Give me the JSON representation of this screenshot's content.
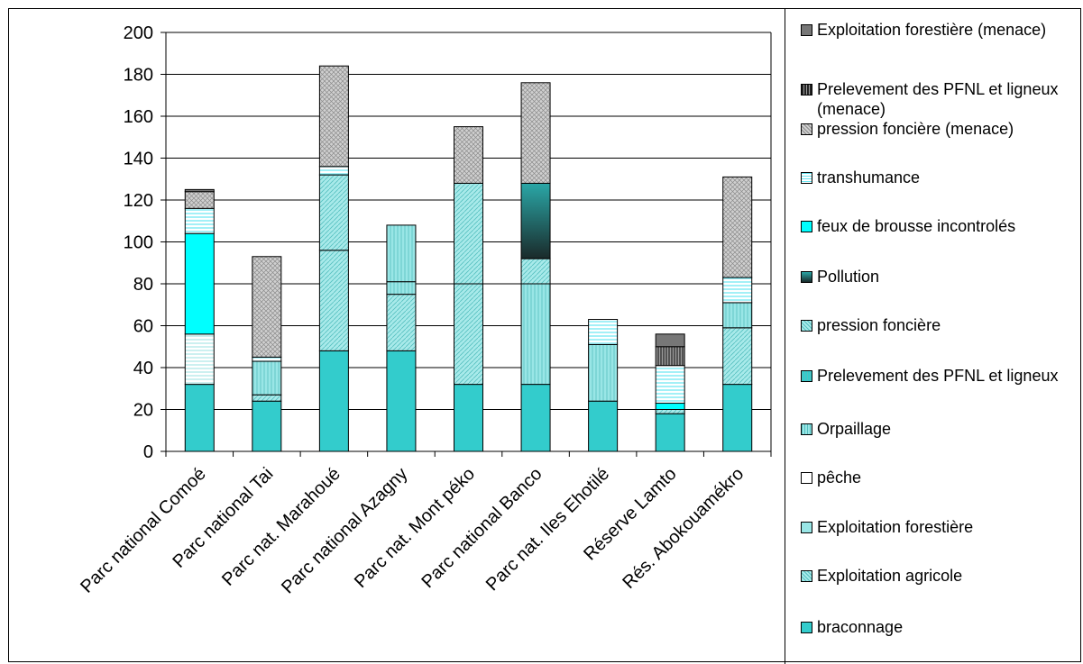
{
  "chart_data": {
    "type": "bar",
    "stacked": true,
    "title": "",
    "xlabel": "",
    "ylabel": "",
    "ylim": [
      0,
      200
    ],
    "yticks": [
      0,
      20,
      40,
      60,
      80,
      100,
      120,
      140,
      160,
      180,
      200
    ],
    "grid": true,
    "legend_position": "right",
    "categories": [
      "Parc national Comoé",
      "Parc national Tai",
      "Parc nat. Marahoué",
      "Parc national Azagny",
      "Parc nat. Mont péko",
      "Parc national Banco",
      "Parc nat. Iles Ehotilé",
      "Réserve Lamto",
      "Rés. Abokouamékro"
    ],
    "series": [
      {
        "name": "braconnage",
        "color": "#33cccc",
        "pattern": "solid",
        "values": [
          32,
          24,
          48,
          48,
          32,
          32,
          24,
          18,
          32
        ]
      },
      {
        "name": "Exploitation agricole",
        "color": "#99e6e6",
        "pattern": "diag",
        "values": [
          0,
          3,
          48,
          27,
          48,
          0,
          0,
          0,
          27
        ]
      },
      {
        "name": "Exploitation forestière",
        "color": "#99e6e6",
        "pattern": "solid",
        "values": [
          0,
          0,
          0,
          0,
          0,
          0,
          0,
          0,
          0
        ]
      },
      {
        "name": "pêche",
        "color": "#ffffff",
        "pattern": "hlines",
        "values": [
          24,
          0,
          0,
          0,
          0,
          0,
          0,
          0,
          0
        ]
      },
      {
        "name": "Orpaillage",
        "color": "#99e6e6",
        "pattern": "vlines",
        "values": [
          0,
          0,
          0,
          6,
          0,
          0,
          27,
          0,
          12
        ]
      },
      {
        "name": "Prelevement des PFNL et ligneux",
        "color": "#33cccc",
        "pattern": "vlines",
        "values": [
          0,
          16,
          0,
          27,
          0,
          48,
          0,
          0,
          0
        ]
      },
      {
        "name": "pression foncière",
        "color": "#99e6e6",
        "pattern": "diag",
        "values": [
          0,
          0,
          36,
          0,
          48,
          12,
          0,
          2,
          0
        ]
      },
      {
        "name": "Pollution",
        "color": "#1a5555",
        "pattern": "gradient",
        "values": [
          0,
          0,
          0,
          0,
          0,
          36,
          0,
          0,
          0
        ]
      },
      {
        "name": "feux de brousse incontrolés",
        "color": "#00ffff",
        "pattern": "solid",
        "values": [
          48,
          0,
          0,
          0,
          0,
          0,
          0,
          3,
          0
        ]
      },
      {
        "name": "transhumance",
        "color": "#ffffff",
        "pattern": "cyanlines",
        "values": [
          12,
          2,
          4,
          0,
          0,
          0,
          12,
          18,
          12
        ]
      },
      {
        "name": "pression foncière (menace)",
        "color": "#b8b8b8",
        "pattern": "crosshatch",
        "values": [
          8,
          48,
          48,
          0,
          27,
          48,
          0,
          0,
          48
        ]
      },
      {
        "name": "Prelevement des PFNL et ligneux (menace)",
        "color": "#555555",
        "pattern": "darkv",
        "values": [
          0,
          0,
          0,
          0,
          0,
          0,
          0,
          9,
          0
        ]
      },
      {
        "name": "Exploitation forestière (menace)",
        "color": "#777777",
        "pattern": "solid",
        "values": [
          1,
          0,
          0,
          0,
          0,
          0,
          0,
          6,
          0
        ]
      }
    ]
  },
  "legend": [
    {
      "label": "Exploitation forestière (menace)",
      "swatch": "#777777"
    },
    {
      "label": "Prelevement des PFNL et ligneux (menace)",
      "swatch": "#444444"
    },
    {
      "label": "pression foncière (menace)",
      "swatch": "#b8b8b8"
    },
    {
      "label": "transhumance",
      "swatch": "#ffffff"
    },
    {
      "label": "feux de brousse incontrolés",
      "swatch": "#00ffff"
    },
    {
      "label": "Pollution",
      "swatch": "#1a5555"
    },
    {
      "label": "pression foncière",
      "swatch": "#99e6e6"
    },
    {
      "label": "Prelevement des PFNL et ligneux",
      "swatch": "#33cccc"
    },
    {
      "label": "Orpaillage",
      "swatch": "#99e6e6"
    },
    {
      "label": "pêche",
      "swatch": "#ffffff"
    },
    {
      "label": "Exploitation forestière",
      "swatch": "#99e6e6"
    },
    {
      "label": "Exploitation agricole",
      "swatch": "#99e6e6"
    },
    {
      "label": "braconnage",
      "swatch": "#33cccc"
    }
  ]
}
